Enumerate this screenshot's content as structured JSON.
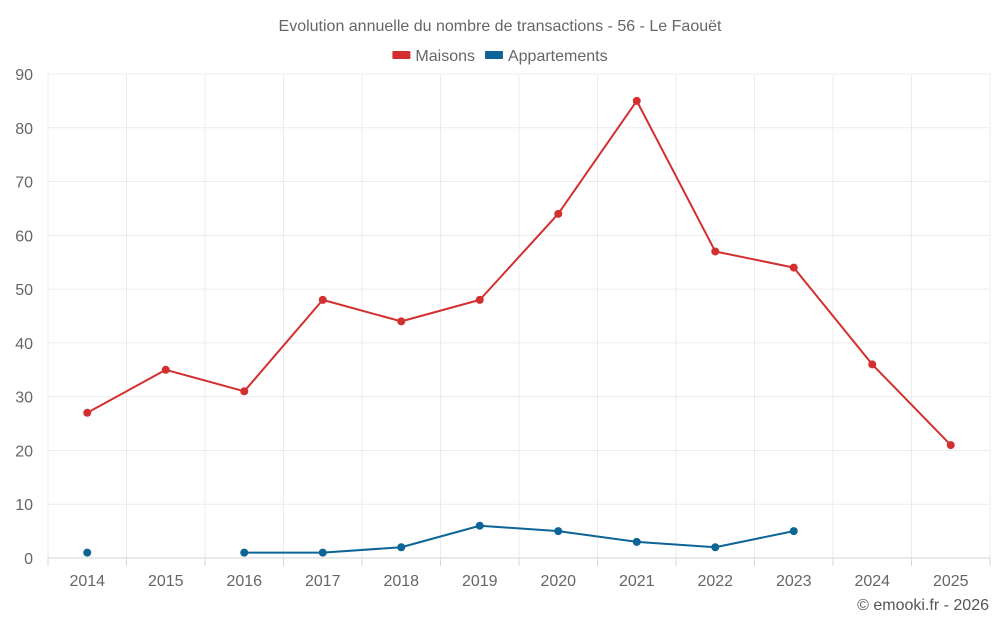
{
  "chart_data": {
    "type": "line",
    "title": "Evolution annuelle du nombre de transactions - 56 - Le Faouët",
    "xlabel": "",
    "ylabel": "",
    "categories": [
      "2014",
      "2015",
      "2016",
      "2017",
      "2018",
      "2019",
      "2020",
      "2021",
      "2022",
      "2023",
      "2024",
      "2025"
    ],
    "ylim": [
      0,
      90
    ],
    "yticks": [
      0,
      10,
      20,
      30,
      40,
      50,
      60,
      70,
      80,
      90
    ],
    "grid": true,
    "legend_position": "top-center",
    "series": [
      {
        "name": "Maisons",
        "color": "#d32f2f",
        "values": [
          27,
          35,
          31,
          48,
          44,
          48,
          64,
          85,
          57,
          54,
          36,
          21
        ]
      },
      {
        "name": "Appartements",
        "color": "#0d6496",
        "values": [
          1,
          null,
          1,
          1,
          2,
          6,
          5,
          3,
          2,
          5,
          null,
          null
        ]
      }
    ]
  },
  "footer": {
    "credit": "© emooki.fr - 2026"
  }
}
